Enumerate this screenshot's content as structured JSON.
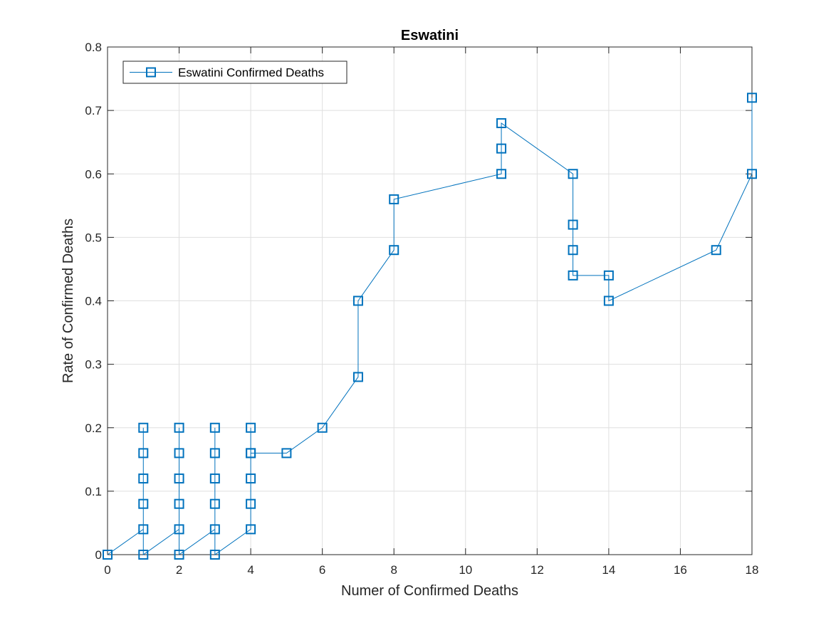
{
  "chart_data": {
    "type": "line",
    "title": "Eswatini",
    "xlabel": "Numer of Confirmed Deaths",
    "ylabel": "Rate of Confirmed Deaths",
    "xlim": [
      0,
      18
    ],
    "ylim": [
      0,
      0.8
    ],
    "xticks": [
      "0",
      "2",
      "4",
      "6",
      "8",
      "10",
      "12",
      "14",
      "16",
      "18"
    ],
    "yticks": [
      "0",
      "0.1",
      "0.2",
      "0.3",
      "0.4",
      "0.5",
      "0.6",
      "0.7",
      "0.8"
    ],
    "grid": true,
    "legend_position": "top-left",
    "series": [
      {
        "name": "Eswatini Confirmed Deaths",
        "color": "#0072BD",
        "marker": "square",
        "points": [
          [
            0,
            0
          ],
          [
            1,
            0.04
          ],
          [
            1,
            0.08
          ],
          [
            1,
            0.12
          ],
          [
            1,
            0.16
          ],
          [
            1,
            0.2
          ],
          [
            1,
            0
          ],
          [
            2,
            0.04
          ],
          [
            2,
            0.08
          ],
          [
            2,
            0.12
          ],
          [
            2,
            0.16
          ],
          [
            2,
            0.2
          ],
          [
            2,
            0
          ],
          [
            3,
            0.04
          ],
          [
            3,
            0.08
          ],
          [
            3,
            0.12
          ],
          [
            3,
            0.16
          ],
          [
            3,
            0.2
          ],
          [
            3,
            0
          ],
          [
            4,
            0.04
          ],
          [
            4,
            0.08
          ],
          [
            4,
            0.12
          ],
          [
            4,
            0.16
          ],
          [
            4,
            0.2
          ],
          [
            4,
            0.16
          ],
          [
            5,
            0.16
          ],
          [
            6,
            0.2
          ],
          [
            7,
            0.28
          ],
          [
            7,
            0.4
          ],
          [
            8,
            0.48
          ],
          [
            8,
            0.56
          ],
          [
            11,
            0.6
          ],
          [
            11,
            0.64
          ],
          [
            11,
            0.68
          ],
          [
            13,
            0.6
          ],
          [
            13,
            0.52
          ],
          [
            13,
            0.48
          ],
          [
            13,
            0.44
          ],
          [
            14,
            0.44
          ],
          [
            14,
            0.4
          ],
          [
            17,
            0.48
          ],
          [
            18,
            0.6
          ],
          [
            18,
            0.72
          ]
        ]
      }
    ]
  }
}
